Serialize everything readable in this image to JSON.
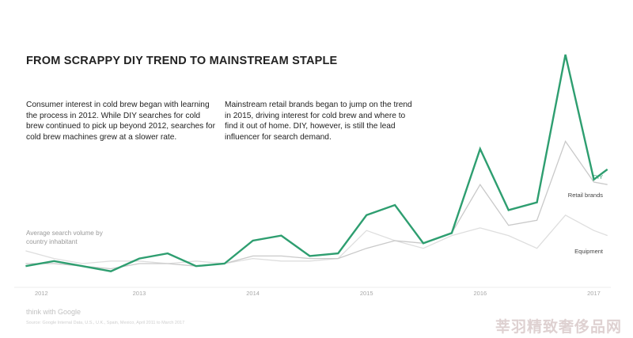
{
  "chart_data": {
    "type": "line",
    "title": "FROM SCRAPPY DIY TREND TO MAINSTREAM STAPLE",
    "ylabel": "Average search volume by country inhabitant",
    "x_ticks": [
      "2012",
      "2013",
      "2014",
      "2015",
      "2016",
      "2017"
    ],
    "x": [
      2012.0,
      2012.25,
      2012.5,
      2012.75,
      2013.0,
      2013.25,
      2013.5,
      2013.75,
      2014.0,
      2014.25,
      2014.5,
      2014.75,
      2015.0,
      2015.25,
      2015.5,
      2015.75,
      2016.0,
      2016.25,
      2016.5,
      2016.75,
      2017.0,
      2017.12
    ],
    "xlim": [
      2011.9,
      2017.15
    ],
    "ylim": [
      0,
      100
    ],
    "series": [
      {
        "name": "DIY",
        "color": "#2e9e70",
        "values": [
          8,
          10,
          8,
          6,
          11,
          13,
          8,
          9,
          18,
          20,
          12,
          13,
          28,
          32,
          17,
          21,
          54,
          30,
          33,
          91,
          42,
          46
        ]
      },
      {
        "name": "Retail brands",
        "color": "#c9c9c9",
        "values": [
          9,
          9,
          8,
          7,
          9,
          9,
          8,
          9,
          12,
          12,
          11,
          11,
          15,
          18,
          17,
          21,
          40,
          24,
          26,
          57,
          41,
          40
        ]
      },
      {
        "name": "Equipment",
        "color": "#dedede",
        "values": [
          14,
          11,
          9,
          10,
          10,
          9,
          10,
          9,
          11,
          10,
          10,
          11,
          22,
          18,
          15,
          20,
          23,
          20,
          15,
          28,
          22,
          20
        ]
      }
    ]
  },
  "text": {
    "paragraph1": "Consumer interest in cold brew began with learning the process in 2012. While DIY searches for cold brew continued to pick up beyond 2012, searches for cold brew machines grew at a slower rate.",
    "paragraph2": "Mainstream retail brands began to jump on the trend in 2015, driving interest for cold brew and where to find it out of home. DIY, however, is still the lead influencer for search demand.",
    "footer_logo": "think with Google",
    "footer_source": "Source: Google Internal Data, U.S., U.K., Spain, Mexico, April 2011 to March 2017",
    "watermark": "莘羽精致奢侈品网"
  }
}
